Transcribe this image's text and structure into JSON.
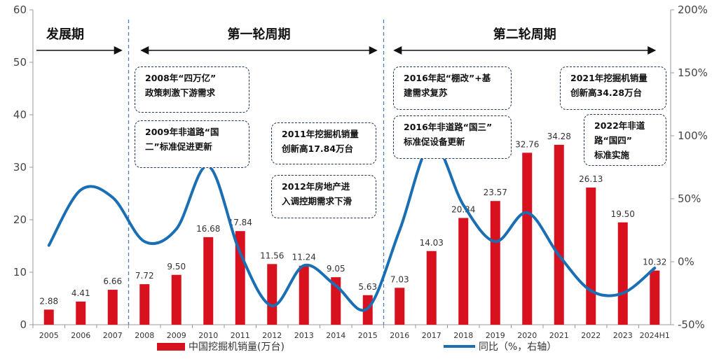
{
  "chart_data": {
    "type": "bar",
    "categories": [
      "2005",
      "2006",
      "2007",
      "2008",
      "2009",
      "2010",
      "2011",
      "2012",
      "2013",
      "2014",
      "2015",
      "2016",
      "2017",
      "2018",
      "2019",
      "2020",
      "2021",
      "2022",
      "2023",
      "2024H1"
    ],
    "series": [
      {
        "name": "中国挖掘机销量(万台)",
        "type": "bar",
        "axis": "left",
        "color": "#d7111e",
        "values": [
          2.88,
          4.41,
          6.66,
          7.72,
          9.5,
          16.68,
          17.84,
          11.56,
          11.24,
          9.05,
          5.63,
          7.03,
          14.03,
          20.34,
          23.57,
          32.76,
          34.28,
          26.13,
          19.5,
          10.32
        ],
        "labels": [
          "2.88",
          "4.41",
          "6.66",
          "7.72",
          "9.50",
          "16.68",
          "17.84",
          "11.56",
          "11.24",
          "9.05",
          "5.63",
          "7.03",
          "14.03",
          "20.34",
          "23.57",
          "32.76",
          "34.28",
          "26.13",
          "19.50",
          "10.32"
        ]
      },
      {
        "name": "同比（%，右轴）",
        "type": "line",
        "axis": "right",
        "color": "#1a6fb4",
        "values": [
          13,
          57,
          51,
          16,
          26,
          76,
          7,
          -35,
          -3,
          -19,
          -37,
          25,
          94,
          45,
          16,
          39,
          5,
          -23,
          -25,
          -5
        ]
      }
    ],
    "y_left": {
      "ylim": [
        0,
        60
      ],
      "ticks": [
        "0",
        "10",
        "20",
        "30",
        "40",
        "50",
        "60"
      ]
    },
    "y_right": {
      "ylim": [
        -50,
        200
      ],
      "ticks": [
        "-50%",
        "0%",
        "50%",
        "100%",
        "150%",
        "200%"
      ]
    },
    "phases": [
      {
        "label": "发展期",
        "arrow_from": "2005",
        "arrow_to": "2008"
      },
      {
        "label": "第一轮周期",
        "arrow_from": "2008",
        "arrow_to": "2015"
      },
      {
        "label": "第二轮周期",
        "arrow_from": "2016",
        "arrow_to": "2024H1"
      }
    ],
    "annotations": [
      "2008年“四万亿”\n政策刺激下游需求",
      "2009年非道路“国\n二”标准促进更新",
      "2011年挖掘机销量\n创新高17.84万台",
      "2012年房地产进\n入调控期需求下滑",
      "2016年起“棚改”+基\n建需求复苏",
      "2016年非道路“国三”\n标准促设备更新",
      "2021年挖掘机销量\n创新高34.28万台",
      "2022年非道\n路“国四”\n标准实施"
    ],
    "legend": {
      "placement": "bottom"
    }
  }
}
